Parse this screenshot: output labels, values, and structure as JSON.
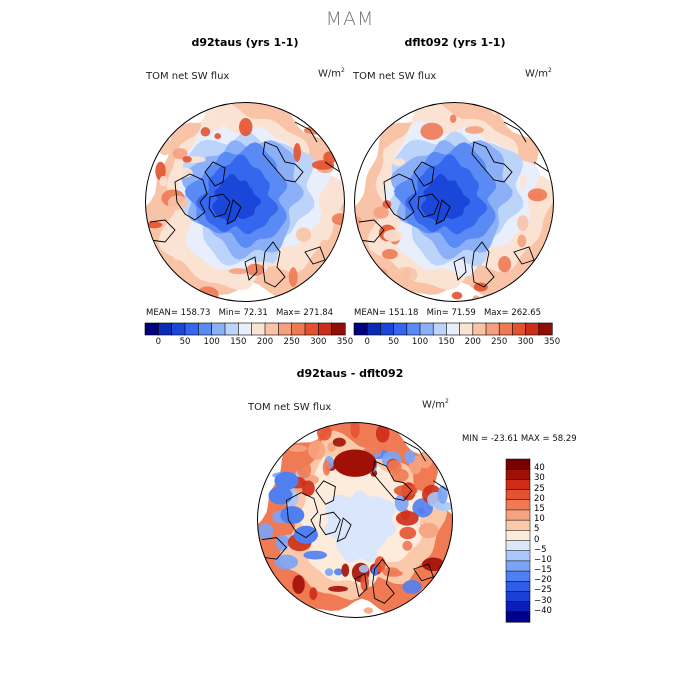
{
  "figure_title": "MAM",
  "chart_data": [
    {
      "type": "map",
      "title": "d92taus (yrs 1-1)",
      "variable": "TOM net SW flux",
      "units": "W/m²",
      "stats": {
        "mean_label": "MEAN=",
        "mean": "158.73",
        "min_label": "Min=",
        "min": "72.31",
        "max_label": "Max=",
        "max": "271.84"
      },
      "colorbar": {
        "levels": [
          0,
          25,
          50,
          75,
          100,
          125,
          150,
          175,
          200,
          225,
          250,
          275,
          300,
          325,
          350
        ],
        "colors": [
          "#00007f",
          "#0a2bb4",
          "#1a47d9",
          "#3566ee",
          "#5a8af4",
          "#8bb0f7",
          "#bcd4fa",
          "#e8eefb",
          "#fbe3d4",
          "#f8c3a6",
          "#f4a07f",
          "#ee7a55",
          "#e25230",
          "#c9301c",
          "#8e0e08"
        ],
        "tick_labels": [
          "0",
          "50",
          "100",
          "150",
          "200",
          "250",
          "300",
          "350"
        ]
      }
    },
    {
      "type": "map",
      "title": "dflt092 (yrs 1-1)",
      "variable": "TOM net SW flux",
      "units": "W/m²",
      "stats": {
        "mean_label": "MEAN=",
        "mean": "151.18",
        "min_label": "Min=",
        "min": "71.59",
        "max_label": "Max=",
        "max": "262.65"
      },
      "colorbar": {
        "levels": [
          0,
          25,
          50,
          75,
          100,
          125,
          150,
          175,
          200,
          225,
          250,
          275,
          300,
          325,
          350
        ],
        "colors": [
          "#00007f",
          "#0a2bb4",
          "#1a47d9",
          "#3566ee",
          "#5a8af4",
          "#8bb0f7",
          "#bcd4fa",
          "#e8eefb",
          "#fbe3d4",
          "#f8c3a6",
          "#f4a07f",
          "#ee7a55",
          "#e25230",
          "#c9301c",
          "#8e0e08"
        ],
        "tick_labels": [
          "0",
          "50",
          "100",
          "150",
          "200",
          "250",
          "300",
          "350"
        ]
      }
    },
    {
      "type": "map",
      "title": "d92taus - dflt092",
      "variable": "TOM net SW flux",
      "units": "W/m²",
      "stats": {
        "min_label": "MIN =",
        "min": "-23.61",
        "max_label": "MAX =",
        "max": "58.29"
      },
      "colorbar": {
        "levels": [
          -40,
          -30,
          -25,
          -20,
          -15,
          -10,
          -5,
          0,
          5,
          10,
          15,
          20,
          25,
          30,
          40
        ],
        "colors": [
          "#00008b",
          "#0a1fb8",
          "#1b3ed6",
          "#2f5ce8",
          "#4f7ff1",
          "#7aa3f6",
          "#a9c7fa",
          "#dae6fc",
          "#fdebdc",
          "#fbc9aa",
          "#f6a37f",
          "#ef7a54",
          "#e35332",
          "#cd2d17",
          "#a01005",
          "#7a0000"
        ],
        "tick_labels": [
          "40",
          "30",
          "25",
          "20",
          "15",
          "10",
          "5",
          "0",
          "−5",
          "−10",
          "−15",
          "−20",
          "−25",
          "−30",
          "−40"
        ]
      }
    }
  ]
}
